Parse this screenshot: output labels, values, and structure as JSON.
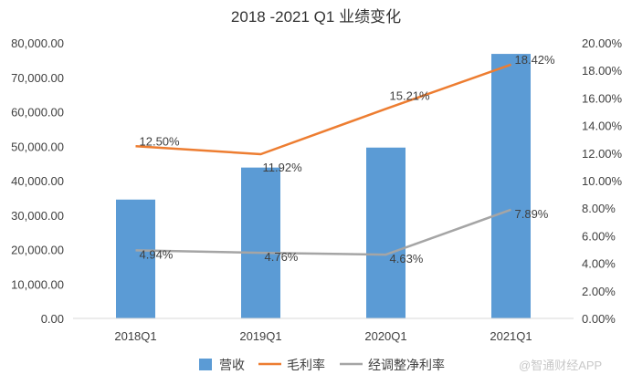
{
  "chart_data": {
    "type": "bar",
    "title": "2018 -2021 Q1 业绩变化",
    "categories": [
      "2018Q1",
      "2019Q1",
      "2020Q1",
      "2021Q1"
    ],
    "ylim_left": [
      0,
      80000
    ],
    "ylim_right": [
      0,
      20
    ],
    "left_ticks": [
      "0.00",
      "10,000.00",
      "20,000.00",
      "30,000.00",
      "40,000.00",
      "50,000.00",
      "60,000.00",
      "70,000.00",
      "80,000.00"
    ],
    "right_ticks": [
      "0.00%",
      "2.00%",
      "4.00%",
      "6.00%",
      "8.00%",
      "10.00%",
      "12.00%",
      "14.00%",
      "16.00%",
      "18.00%",
      "20.00%"
    ],
    "series": [
      {
        "name": "营收",
        "type": "bar",
        "axis": "left",
        "color": "#5b9bd5",
        "values": [
          34500,
          43800,
          49600,
          76800
        ]
      },
      {
        "name": "毛利率",
        "type": "line",
        "axis": "right",
        "color": "#ed7d31",
        "values": [
          12.5,
          11.92,
          15.21,
          18.42
        ],
        "labels": [
          "12.50%",
          "11.92%",
          "15.21%",
          "18.42%"
        ]
      },
      {
        "name": "经调整净利率",
        "type": "line",
        "axis": "right",
        "color": "#a5a5a5",
        "values": [
          4.94,
          4.76,
          4.63,
          7.89
        ],
        "labels": [
          "4.94%",
          "4.76%",
          "4.63%",
          "7.89%"
        ]
      }
    ],
    "legend_position": "bottom",
    "grid": false
  },
  "watermark": "@智通财经APP"
}
